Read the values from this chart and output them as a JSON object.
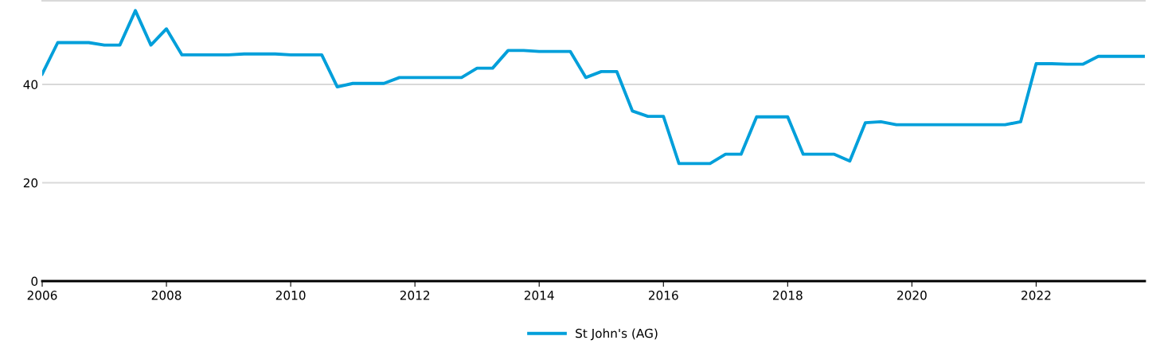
{
  "chart_data": {
    "type": "line",
    "xlim": [
      2006,
      2023.75
    ],
    "xticks": [
      2006,
      2008,
      2010,
      2012,
      2014,
      2016,
      2018,
      2020,
      2022
    ],
    "ylim": [
      0,
      57
    ],
    "yticks": [
      0,
      20,
      40
    ],
    "grid": "y",
    "legend": "bottom",
    "marker": "none",
    "line_style": "solid",
    "x": [
      2006,
      2006.25,
      2006.5,
      2006.75,
      2007,
      2007.25,
      2007.5,
      2007.75,
      2008,
      2008.25,
      2008.5,
      2008.75,
      2009,
      2009.25,
      2009.5,
      2009.75,
      2010,
      2010.25,
      2010.5,
      2010.75,
      2011,
      2011.25,
      2011.5,
      2011.75,
      2012,
      2012.25,
      2012.5,
      2012.75,
      2013,
      2013.25,
      2013.5,
      2013.75,
      2014,
      2014.25,
      2014.5,
      2014.75,
      2015,
      2015.25,
      2015.5,
      2015.75,
      2016,
      2016.25,
      2016.5,
      2016.75,
      2017,
      2017.25,
      2017.5,
      2017.75,
      2018,
      2018.25,
      2018.5,
      2018.75,
      2019,
      2019.25,
      2019.5,
      2019.75,
      2020,
      2020.25,
      2020.5,
      2020.75,
      2021,
      2021.25,
      2021.5,
      2021.75,
      2022,
      2022.25,
      2022.5,
      2022.75,
      2023,
      2023.25,
      2023.5,
      2023.75
    ],
    "series": [
      {
        "name": "St John's (AG)",
        "color": "#009fda",
        "values": [
          42.1,
          48.5,
          48.5,
          48.5,
          48,
          48,
          55,
          48,
          51.3,
          46,
          46,
          46,
          46,
          46.2,
          46.2,
          46.2,
          46,
          46,
          46,
          39.5,
          40.2,
          40.2,
          40.2,
          41.4,
          41.4,
          41.4,
          41.4,
          41.4,
          43.3,
          43.3,
          46.9,
          46.9,
          46.7,
          46.7,
          46.7,
          41.4,
          42.6,
          42.6,
          34.6,
          33.5,
          33.5,
          23.9,
          23.9,
          23.9,
          25.8,
          25.8,
          33.4,
          33.4,
          33.4,
          25.8,
          25.8,
          25.8,
          24.4,
          32.2,
          32.4,
          31.8,
          31.8,
          31.8,
          31.8,
          31.8,
          31.8,
          31.8,
          31.8,
          32.4,
          44.2,
          44.2,
          44.1,
          44.1,
          45.7,
          45.7,
          45.7,
          45.7
        ]
      }
    ]
  }
}
